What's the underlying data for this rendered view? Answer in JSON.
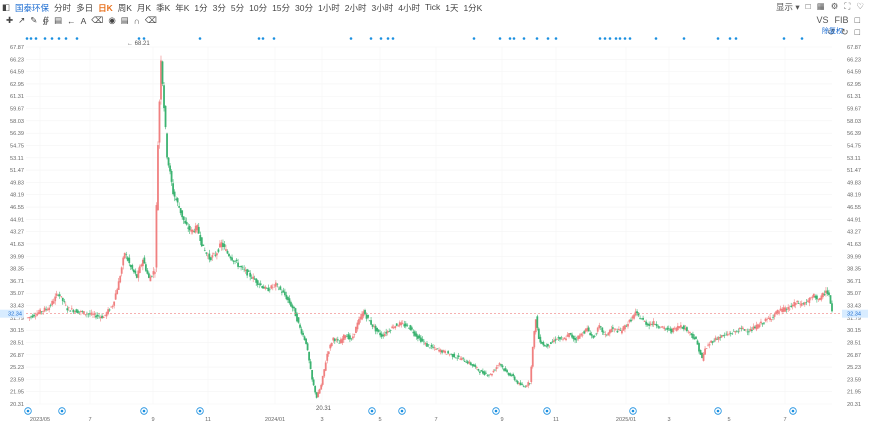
{
  "toolbar": {
    "panel_icon": "sidebar-panel-icon",
    "stock_name": "国泰环保",
    "periods": [
      "分时",
      "多日",
      "日K",
      "周K",
      "月K",
      "季K",
      "年K",
      "1分",
      "3分",
      "5分",
      "10分",
      "15分",
      "30分",
      "1小时",
      "2小时",
      "3小时",
      "4小时",
      "Tick",
      "1天",
      "1分K"
    ],
    "active_period": "日K",
    "display_label": "显示",
    "right_icons": [
      "camera-icon",
      "grid-icon",
      "gear-icon",
      "fullscreen-icon",
      "favorite-icon"
    ],
    "vs_label": "VS",
    "fib_label": "FIB",
    "draw_tools": [
      "crosshair-icon",
      "line-tool-icon",
      "brush-tool-icon",
      "ruler-tool-icon",
      "indicator-tool-icon",
      "undo-icon",
      "text-tool-icon",
      "eraser-icon",
      "eye-icon",
      "lock-icon",
      "magnet-icon",
      "trash-icon"
    ],
    "restore_label": "除复权"
  },
  "accent": "#1a6bd1",
  "up_color": "#f08080",
  "down_color": "#3cb371",
  "current_price": "32.34",
  "chart_data": {
    "type": "candlestick",
    "title": "",
    "y_ticks": [
      "67.87",
      "66.23",
      "64.59",
      "62.95",
      "61.31",
      "59.67",
      "58.03",
      "56.39",
      "54.75",
      "53.11",
      "51.47",
      "49.83",
      "48.19",
      "46.55",
      "44.91",
      "43.27",
      "41.63",
      "39.99",
      "38.35",
      "36.71",
      "35.07",
      "33.43",
      "31.79",
      "30.15",
      "28.51",
      "26.87",
      "25.23",
      "23.59",
      "21.95",
      "20.31"
    ],
    "ylim": [
      20.31,
      67.87
    ],
    "x_ticks": [
      "2023/05",
      "7",
      "9",
      "11",
      "2024/01",
      "3",
      "5",
      "7",
      "9",
      "11",
      "2025/01",
      "3",
      "5",
      "7"
    ],
    "high_label": "68.21",
    "low_label": "20.31",
    "last_price": "32.34",
    "price_path": [
      [
        0,
        31.8
      ],
      [
        6,
        32.4
      ],
      [
        14,
        33.2
      ],
      [
        20,
        35.1
      ],
      [
        26,
        33.0
      ],
      [
        34,
        32.6
      ],
      [
        42,
        32.2
      ],
      [
        50,
        31.9
      ],
      [
        56,
        33.5
      ],
      [
        60,
        36.5
      ],
      [
        64,
        40.5
      ],
      [
        68,
        38.5
      ],
      [
        72,
        37.2
      ],
      [
        76,
        39.6
      ],
      [
        80,
        37.0
      ],
      [
        84,
        38.2
      ],
      [
        86,
        55.0
      ],
      [
        88,
        66.5
      ],
      [
        90,
        60.0
      ],
      [
        92,
        53.5
      ],
      [
        96,
        48.5
      ],
      [
        100,
        46.5
      ],
      [
        104,
        44.2
      ],
      [
        108,
        43.3
      ],
      [
        112,
        43.8
      ],
      [
        116,
        41.0
      ],
      [
        120,
        39.7
      ],
      [
        124,
        40.2
      ],
      [
        128,
        41.7
      ],
      [
        132,
        40.4
      ],
      [
        136,
        39.5
      ],
      [
        140,
        38.6
      ],
      [
        146,
        37.6
      ],
      [
        152,
        36.5
      ],
      [
        158,
        35.5
      ],
      [
        164,
        36.2
      ],
      [
        170,
        34.8
      ],
      [
        176,
        32.8
      ],
      [
        180,
        30.4
      ],
      [
        184,
        28.5
      ],
      [
        188,
        23.5
      ],
      [
        191,
        21.2
      ],
      [
        194,
        22.8
      ],
      [
        198,
        27.0
      ],
      [
        202,
        29.1
      ],
      [
        206,
        28.4
      ],
      [
        210,
        29.6
      ],
      [
        214,
        28.8
      ],
      [
        218,
        31.0
      ],
      [
        222,
        32.6
      ],
      [
        226,
        31.3
      ],
      [
        230,
        30.2
      ],
      [
        234,
        29.4
      ],
      [
        238,
        30.0
      ],
      [
        242,
        30.7
      ],
      [
        246,
        31.0
      ],
      [
        252,
        30.6
      ],
      [
        258,
        29.2
      ],
      [
        264,
        28.1
      ],
      [
        270,
        27.6
      ],
      [
        276,
        27.2
      ],
      [
        282,
        26.7
      ],
      [
        288,
        26.2
      ],
      [
        294,
        25.5
      ],
      [
        300,
        24.5
      ],
      [
        306,
        24.2
      ],
      [
        312,
        25.8
      ],
      [
        316,
        24.6
      ],
      [
        320,
        24.1
      ],
      [
        324,
        23.1
      ],
      [
        328,
        22.6
      ],
      [
        332,
        23.2
      ],
      [
        334,
        27.8
      ],
      [
        336,
        31.8
      ],
      [
        338,
        29.0
      ],
      [
        342,
        28.0
      ],
      [
        346,
        28.4
      ],
      [
        350,
        29.1
      ],
      [
        354,
        28.8
      ],
      [
        358,
        29.6
      ],
      [
        362,
        28.9
      ],
      [
        366,
        29.6
      ],
      [
        370,
        30.3
      ],
      [
        374,
        29.1
      ],
      [
        378,
        30.6
      ],
      [
        382,
        29.4
      ],
      [
        386,
        30.3
      ],
      [
        392,
        30.0
      ],
      [
        398,
        31.3
      ],
      [
        402,
        32.4
      ],
      [
        406,
        31.6
      ],
      [
        410,
        30.9
      ],
      [
        414,
        31.1
      ],
      [
        420,
        30.4
      ],
      [
        426,
        30.1
      ],
      [
        432,
        30.8
      ],
      [
        438,
        29.8
      ],
      [
        442,
        28.8
      ],
      [
        446,
        26.3
      ],
      [
        448,
        27.6
      ],
      [
        452,
        28.6
      ],
      [
        456,
        29.1
      ],
      [
        460,
        29.4
      ],
      [
        466,
        29.8
      ],
      [
        472,
        30.3
      ],
      [
        478,
        30.1
      ],
      [
        484,
        30.9
      ],
      [
        488,
        31.4
      ],
      [
        492,
        31.9
      ],
      [
        496,
        32.6
      ],
      [
        500,
        32.9
      ],
      [
        504,
        33.1
      ],
      [
        508,
        33.8
      ],
      [
        512,
        33.6
      ],
      [
        516,
        34.0
      ],
      [
        520,
        34.7
      ],
      [
        524,
        34.2
      ],
      [
        528,
        35.4
      ],
      [
        530,
        34.8
      ],
      [
        532,
        32.4
      ]
    ]
  },
  "markers_top_label": "·",
  "event_icon": "event-badge-icon"
}
